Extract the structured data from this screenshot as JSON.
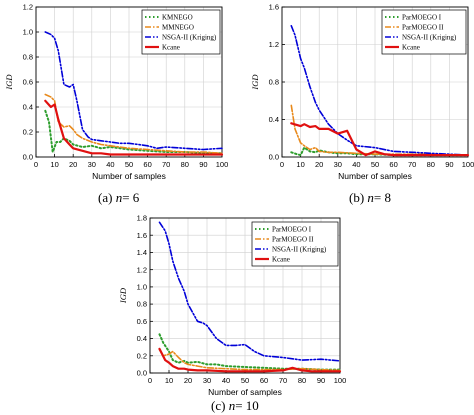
{
  "colors": {
    "green": "#2e9e2e",
    "orange": "#e8891b",
    "blue": "#0000d8",
    "red": "#e01010",
    "grid": "#cfcfcf",
    "axis": "#000000"
  },
  "captions": [
    {
      "prefix": "(a) ",
      "var": "n",
      "suffix": "= 6"
    },
    {
      "prefix": "(b) ",
      "var": "n",
      "suffix": "= 8"
    },
    {
      "prefix": "(c) ",
      "var": "n",
      "suffix": "= 10"
    }
  ],
  "chart_data": [
    {
      "type": "line",
      "title": "",
      "xlabel": "Number of samples",
      "ylabel": "IGD",
      "xlim": [
        0,
        100
      ],
      "ylim": [
        0,
        1.2
      ],
      "xticks": [
        0,
        10,
        20,
        30,
        40,
        50,
        60,
        70,
        80,
        90,
        100
      ],
      "yticks": [
        0.0,
        0.2,
        0.4,
        0.6,
        0.8,
        1.0,
        1.2
      ],
      "grid": true,
      "legend_position": "top-right",
      "series": [
        {
          "name": "KMNEGO",
          "color_key": "green",
          "dash": "dot",
          "x": [
            5,
            7,
            9,
            11,
            13,
            15,
            18,
            20,
            25,
            30,
            35,
            40,
            50,
            60,
            70,
            80,
            90,
            100
          ],
          "y": [
            0.37,
            0.28,
            0.04,
            0.12,
            0.12,
            0.15,
            0.13,
            0.1,
            0.08,
            0.09,
            0.07,
            0.08,
            0.06,
            0.05,
            0.04,
            0.04,
            0.03,
            0.03
          ]
        },
        {
          "name": "MMNEGO",
          "color_key": "orange",
          "dash": "dashdot",
          "x": [
            5,
            8,
            10,
            12,
            15,
            18,
            20,
            22,
            25,
            30,
            35,
            40,
            50,
            60,
            70,
            80,
            90,
            100
          ],
          "y": [
            0.5,
            0.48,
            0.45,
            0.28,
            0.24,
            0.25,
            0.22,
            0.18,
            0.15,
            0.12,
            0.1,
            0.09,
            0.07,
            0.06,
            0.05,
            0.04,
            0.04,
            0.03
          ]
        },
        {
          "name": "NSGA-II (Kriging)",
          "color_key": "blue",
          "dash": "dashdotdot",
          "x": [
            5,
            8,
            10,
            12,
            15,
            18,
            20,
            22,
            25,
            28,
            30,
            35,
            40,
            45,
            50,
            55,
            60,
            65,
            70,
            80,
            90,
            100
          ],
          "y": [
            1.0,
            0.98,
            0.95,
            0.85,
            0.58,
            0.56,
            0.58,
            0.45,
            0.22,
            0.16,
            0.14,
            0.13,
            0.12,
            0.11,
            0.11,
            0.1,
            0.09,
            0.07,
            0.08,
            0.07,
            0.06,
            0.07
          ]
        },
        {
          "name": "Kcane",
          "color_key": "red",
          "dash": "solid",
          "x": [
            5,
            8,
            10,
            12,
            15,
            18,
            20,
            25,
            30,
            35,
            40,
            50,
            60,
            70,
            80,
            90,
            100
          ],
          "y": [
            0.45,
            0.4,
            0.42,
            0.3,
            0.15,
            0.1,
            0.07,
            0.05,
            0.03,
            0.03,
            0.02,
            0.02,
            0.02,
            0.02,
            0.02,
            0.02,
            0.02
          ]
        }
      ]
    },
    {
      "type": "line",
      "title": "",
      "xlabel": "Number of samples",
      "ylabel": "IGD",
      "xlim": [
        0,
        100
      ],
      "ylim": [
        0,
        1.6
      ],
      "xticks": [
        0,
        10,
        20,
        30,
        40,
        50,
        60,
        70,
        80,
        90,
        100
      ],
      "yticks": [
        0.0,
        0.4,
        0.8,
        1.2,
        1.6
      ],
      "grid": true,
      "legend_position": "top-right",
      "series": [
        {
          "name": "ParMOEGO I",
          "color_key": "green",
          "dash": "dot",
          "x": [
            5,
            8,
            10,
            12,
            15,
            18,
            20,
            25,
            30,
            35,
            40,
            50,
            60,
            70,
            80,
            90,
            100
          ],
          "y": [
            0.05,
            0.03,
            0.02,
            0.1,
            0.06,
            0.05,
            0.07,
            0.05,
            0.04,
            0.04,
            0.03,
            0.03,
            0.02,
            0.02,
            0.02,
            0.02,
            0.02
          ]
        },
        {
          "name": "ParMOEGO II",
          "color_key": "orange",
          "dash": "dashdot",
          "x": [
            5,
            7,
            9,
            10,
            12,
            15,
            18,
            20,
            25,
            30,
            40,
            50,
            60,
            70,
            80,
            90,
            100
          ],
          "y": [
            0.55,
            0.3,
            0.2,
            0.15,
            0.12,
            0.08,
            0.1,
            0.06,
            0.05,
            0.05,
            0.04,
            0.03,
            0.03,
            0.03,
            0.03,
            0.02,
            0.02
          ]
        },
        {
          "name": "NSGA-II (Kriging)",
          "color_key": "blue",
          "dash": "dashdotdot",
          "x": [
            5,
            7,
            10,
            12,
            15,
            18,
            20,
            25,
            30,
            35,
            40,
            50,
            60,
            70,
            80,
            90,
            100
          ],
          "y": [
            1.4,
            1.3,
            1.05,
            0.95,
            0.75,
            0.58,
            0.5,
            0.35,
            0.25,
            0.18,
            0.12,
            0.1,
            0.06,
            0.05,
            0.04,
            0.03,
            0.02
          ]
        },
        {
          "name": "Kcane",
          "color_key": "red",
          "dash": "solid",
          "x": [
            5,
            10,
            12,
            15,
            18,
            20,
            25,
            30,
            35,
            40,
            45,
            50,
            55,
            60,
            70,
            80,
            90,
            100
          ],
          "y": [
            0.36,
            0.33,
            0.35,
            0.32,
            0.33,
            0.3,
            0.3,
            0.25,
            0.28,
            0.08,
            0.02,
            0.06,
            0.03,
            0.02,
            0.02,
            0.02,
            0.02,
            0.02
          ]
        }
      ]
    },
    {
      "type": "line",
      "title": "",
      "xlabel": "Number of samples",
      "ylabel": "IGD",
      "xlim": [
        0,
        100
      ],
      "ylim": [
        0,
        1.8
      ],
      "xticks": [
        0,
        10,
        20,
        30,
        40,
        50,
        60,
        70,
        80,
        90,
        100
      ],
      "yticks": [
        0.0,
        0.2,
        0.4,
        0.6,
        0.8,
        1.0,
        1.2,
        1.4,
        1.6,
        1.8
      ],
      "grid": true,
      "legend_position": "top-right",
      "series": [
        {
          "name": "ParMOEGO I",
          "color_key": "green",
          "dash": "dot",
          "x": [
            5,
            7,
            10,
            12,
            15,
            18,
            20,
            25,
            30,
            35,
            40,
            50,
            60,
            70,
            80,
            90,
            100
          ],
          "y": [
            0.45,
            0.35,
            0.25,
            0.15,
            0.12,
            0.14,
            0.12,
            0.13,
            0.1,
            0.1,
            0.08,
            0.07,
            0.06,
            0.05,
            0.05,
            0.04,
            0.04
          ]
        },
        {
          "name": "ParMOEGO II",
          "color_key": "orange",
          "dash": "dashdot",
          "x": [
            5,
            7,
            10,
            12,
            15,
            18,
            20,
            25,
            30,
            40,
            50,
            60,
            70,
            80,
            90,
            100
          ],
          "y": [
            0.27,
            0.2,
            0.22,
            0.25,
            0.18,
            0.12,
            0.1,
            0.08,
            0.06,
            0.05,
            0.04,
            0.04,
            0.04,
            0.05,
            0.04,
            0.03
          ]
        },
        {
          "name": "NSGA-II (Kriging)",
          "color_key": "blue",
          "dash": "dashdotdot",
          "x": [
            5,
            8,
            10,
            12,
            15,
            18,
            20,
            25,
            28,
            30,
            35,
            40,
            45,
            50,
            55,
            60,
            70,
            80,
            90,
            100
          ],
          "y": [
            1.75,
            1.65,
            1.5,
            1.3,
            1.1,
            0.95,
            0.8,
            0.6,
            0.58,
            0.55,
            0.4,
            0.32,
            0.32,
            0.33,
            0.25,
            0.2,
            0.18,
            0.15,
            0.16,
            0.14
          ]
        },
        {
          "name": "Kcane",
          "color_key": "red",
          "dash": "solid",
          "x": [
            5,
            8,
            10,
            12,
            15,
            18,
            20,
            25,
            30,
            40,
            50,
            60,
            70,
            75,
            80,
            85,
            90,
            100
          ],
          "y": [
            0.28,
            0.15,
            0.12,
            0.08,
            0.05,
            0.05,
            0.04,
            0.03,
            0.03,
            0.02,
            0.02,
            0.02,
            0.03,
            0.06,
            0.03,
            0.02,
            0.02,
            0.02
          ]
        }
      ]
    }
  ]
}
